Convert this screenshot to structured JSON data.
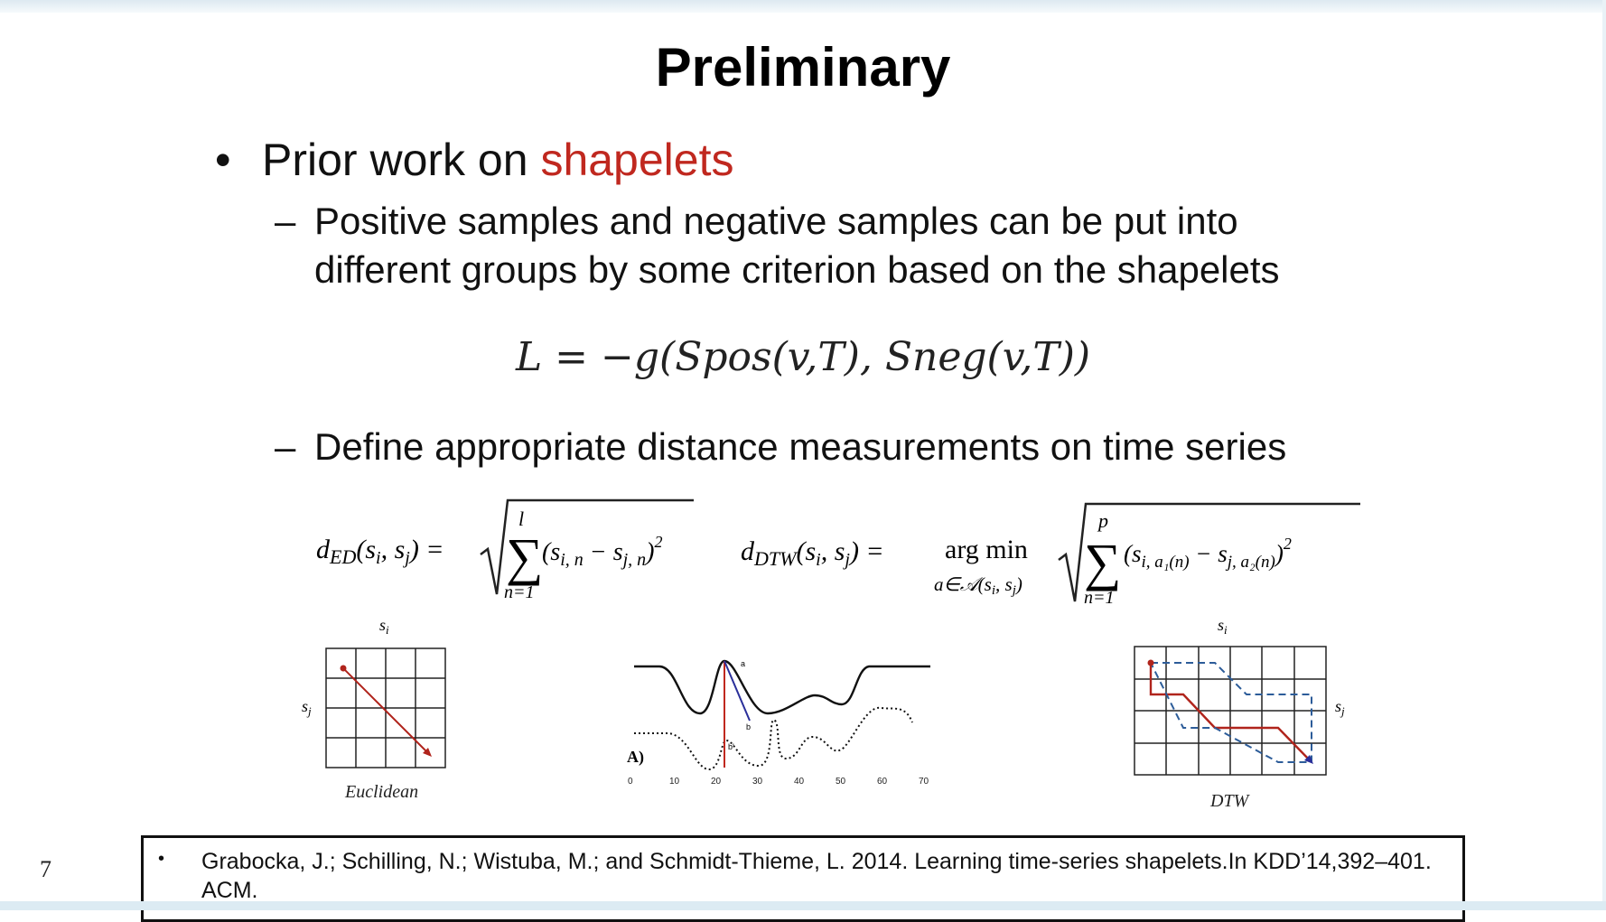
{
  "slide": {
    "title": "Preliminary",
    "bullet": {
      "text": "Prior work on ",
      "highlight": "shapelets",
      "highlight_color": "#c0281f"
    },
    "sub1": {
      "line1": "Positive samples and negative samples can be put into",
      "line2": "different groups by some criterion based on the shapelets"
    },
    "formula": "L = −g(Spos(v,T), Sneg(v,T))",
    "sub2": "Define appropriate distance measurements on time series",
    "dash": "–",
    "figures": {
      "euclidean_caption": "Euclidean",
      "dtw_caption": "DTW",
      "middle_label": "A)",
      "middle_axis_ticks": [
        "0",
        "10",
        "20",
        "30",
        "40",
        "50",
        "60",
        "70"
      ]
    },
    "reference": "Grabocka, J.; Schilling, N.; Wistuba, M.; and Schmidt-Thieme, L. 2014. Learning time-series shapelets.In KDD’14,392–401. ACM.",
    "page_number": "7"
  }
}
